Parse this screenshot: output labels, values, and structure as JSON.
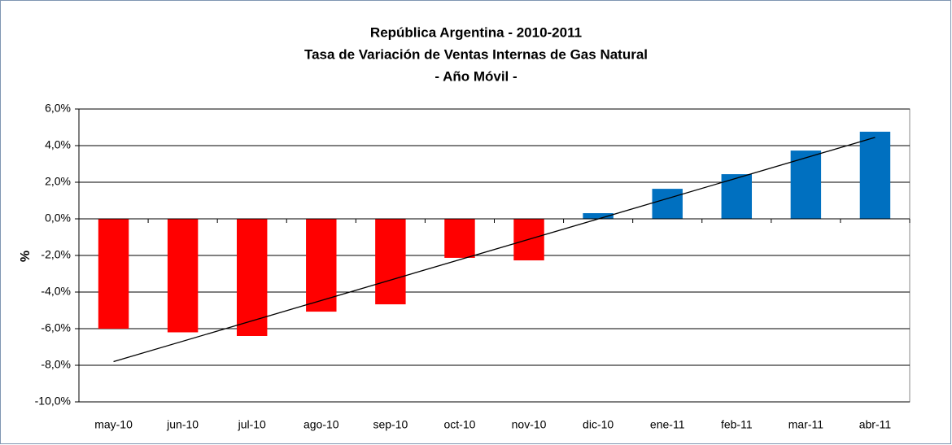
{
  "chart_data": {
    "type": "bar",
    "title": [
      "República Argentina - 2010-2011",
      "Tasa de Variación  de Ventas Internas de Gas Natural",
      "- Año Móvil -"
    ],
    "y_label": "%",
    "categories": [
      "may-10",
      "jun-10",
      "jul-10",
      "ago-10",
      "sep-10",
      "oct-10",
      "nov-10",
      "dic-10",
      "ene-11",
      "feb-11",
      "mar-11",
      "abr-11"
    ],
    "values": [
      -6.0,
      -6.2,
      -6.4,
      -5.07,
      -4.67,
      -2.13,
      -2.27,
      0.31,
      1.64,
      2.44,
      3.73,
      4.76
    ],
    "colors": {
      "negative": "#ff0000",
      "positive": "#0070c0"
    },
    "trendline": {
      "start": -7.8,
      "end": 4.45,
      "color": "#000000"
    },
    "ylim": [
      -10,
      6
    ],
    "yticks": [
      {
        "value": -10,
        "label": "-10,0%"
      },
      {
        "value": -8,
        "label": "-8,0%"
      },
      {
        "value": -6,
        "label": "-6,0%"
      },
      {
        "value": -4,
        "label": "-4,0%"
      },
      {
        "value": -2,
        "label": "-2,0%"
      },
      {
        "value": 0,
        "label": "0,0%"
      },
      {
        "value": 2,
        "label": "2,0%"
      },
      {
        "value": 4,
        "label": "4,0%"
      },
      {
        "value": 6,
        "label": "6,0%"
      }
    ],
    "grid": true
  }
}
